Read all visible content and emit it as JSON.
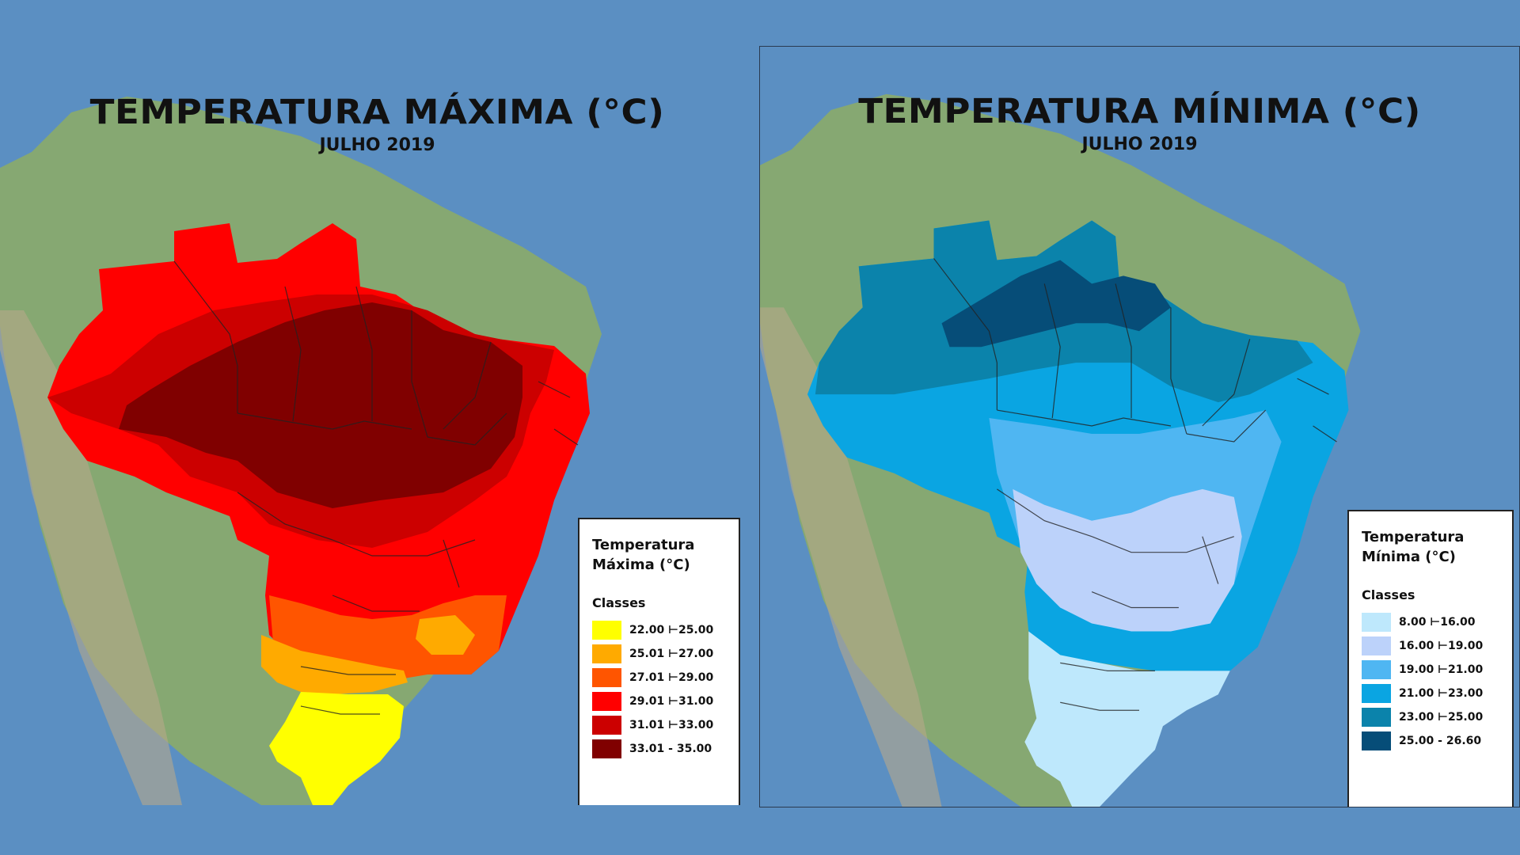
{
  "maps": {
    "max": {
      "title": "TEMPERATURA MÁXIMA (°C)",
      "subtitle": "JULHO 2019",
      "legend_title_1": "Temperatura",
      "legend_title_2": "Máxima (°C)",
      "classes_label": "Classes",
      "classes": [
        {
          "label": "22.00 ⊢25.00",
          "color": "#ffff00"
        },
        {
          "label": "25.01 ⊢27.00",
          "color": "#ffaa00"
        },
        {
          "label": "27.01 ⊢29.00",
          "color": "#ff5500"
        },
        {
          "label": "29.01 ⊢31.00",
          "color": "#ff0000"
        },
        {
          "label": "31.01 ⊢33.00",
          "color": "#cc0000"
        },
        {
          "label": "33.01 - 35.00",
          "color": "#800000"
        }
      ]
    },
    "min": {
      "title": "TEMPERATURA MÍNIMA (°C)",
      "subtitle": "JULHO 2019",
      "legend_title_1": "Temperatura",
      "legend_title_2": "Mínima (°C)",
      "classes_label": "Classes",
      "classes": [
        {
          "label": "8.00 ⊢16.00",
          "color": "#bee8fc"
        },
        {
          "label": "16.00 ⊢19.00",
          "color": "#bcd2fa"
        },
        {
          "label": "19.00 ⊢21.00",
          "color": "#4fb6f2"
        },
        {
          "label": "21.00 ⊢23.00",
          "color": "#0aa5e2"
        },
        {
          "label": "23.00 ⊢25.00",
          "color": "#0b83ab"
        },
        {
          "label": "25.00 - 26.60",
          "color": "#064d78"
        }
      ]
    }
  },
  "colors": {
    "ocean": "#5b8fc2",
    "land": "#7aa86a"
  }
}
